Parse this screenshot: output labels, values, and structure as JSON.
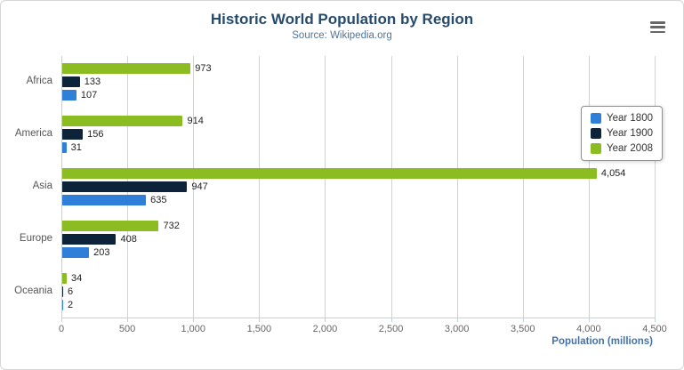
{
  "chart_data": {
    "type": "bar",
    "orientation": "horizontal",
    "title": "Historic World Population by Region",
    "subtitle": "Source: Wikipedia.org",
    "categories": [
      "Africa",
      "America",
      "Asia",
      "Europe",
      "Oceania"
    ],
    "series": [
      {
        "name": "Year 1800",
        "color": "#2f7ed8",
        "values": [
          107,
          31,
          635,
          203,
          2
        ]
      },
      {
        "name": "Year 1900",
        "color": "#0d233a",
        "values": [
          133,
          156,
          947,
          408,
          6
        ]
      },
      {
        "name": "Year 2008",
        "color": "#8bbc21",
        "values": [
          973,
          914,
          4054,
          732,
          34
        ]
      }
    ],
    "xlabel": "Population (millions)",
    "xlim": [
      0,
      4500
    ],
    "xticks": [
      0,
      500,
      1000,
      1500,
      2000,
      2500,
      3000,
      3500,
      4000,
      4500
    ],
    "grid": true,
    "legend_position": "right",
    "style": {
      "title_color": "#274b6d",
      "subtitle_color": "#4d759e",
      "axis_title_color": "#4572a7",
      "grid_color": "#d2d2d2",
      "axis_line_color": "#c0d0e0",
      "tick_label_color": "#666666",
      "category_label_color": "#555555",
      "data_label_color": "#222222"
    }
  },
  "icons": {
    "context_menu": "hamburger-menu-icon"
  }
}
